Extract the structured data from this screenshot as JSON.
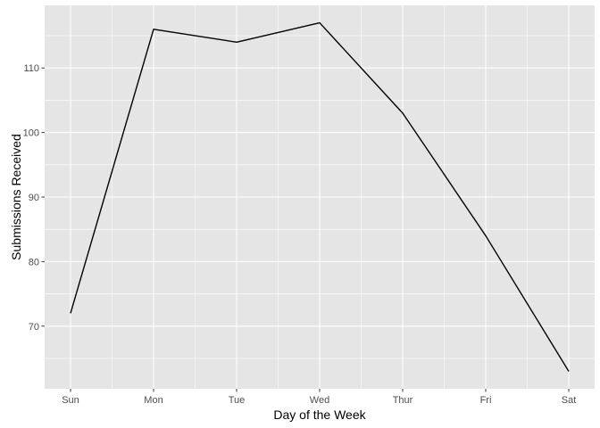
{
  "chart_data": {
    "type": "line",
    "title": "",
    "xlabel": "Day of the Week",
    "ylabel": "Submissions Received",
    "categories": [
      "Sun",
      "Mon",
      "Tue",
      "Wed",
      "Thur",
      "Fri",
      "Sat"
    ],
    "series": [
      {
        "values": [
          72,
          116,
          114,
          117,
          103,
          84,
          63
        ]
      }
    ],
    "ylim": [
      60.3,
      119.7
    ],
    "yticks": [
      70,
      80,
      90,
      100,
      110
    ],
    "ytick_labels": [
      "70",
      "80",
      "90",
      "100",
      "110"
    ],
    "grid": true,
    "legend": "none",
    "colors": {
      "panel_background": "#e5e5e5",
      "grid_major": "#ffffff",
      "line": "#000000",
      "tick_text": "#4d4d4d",
      "axis_title": "#000000"
    }
  }
}
